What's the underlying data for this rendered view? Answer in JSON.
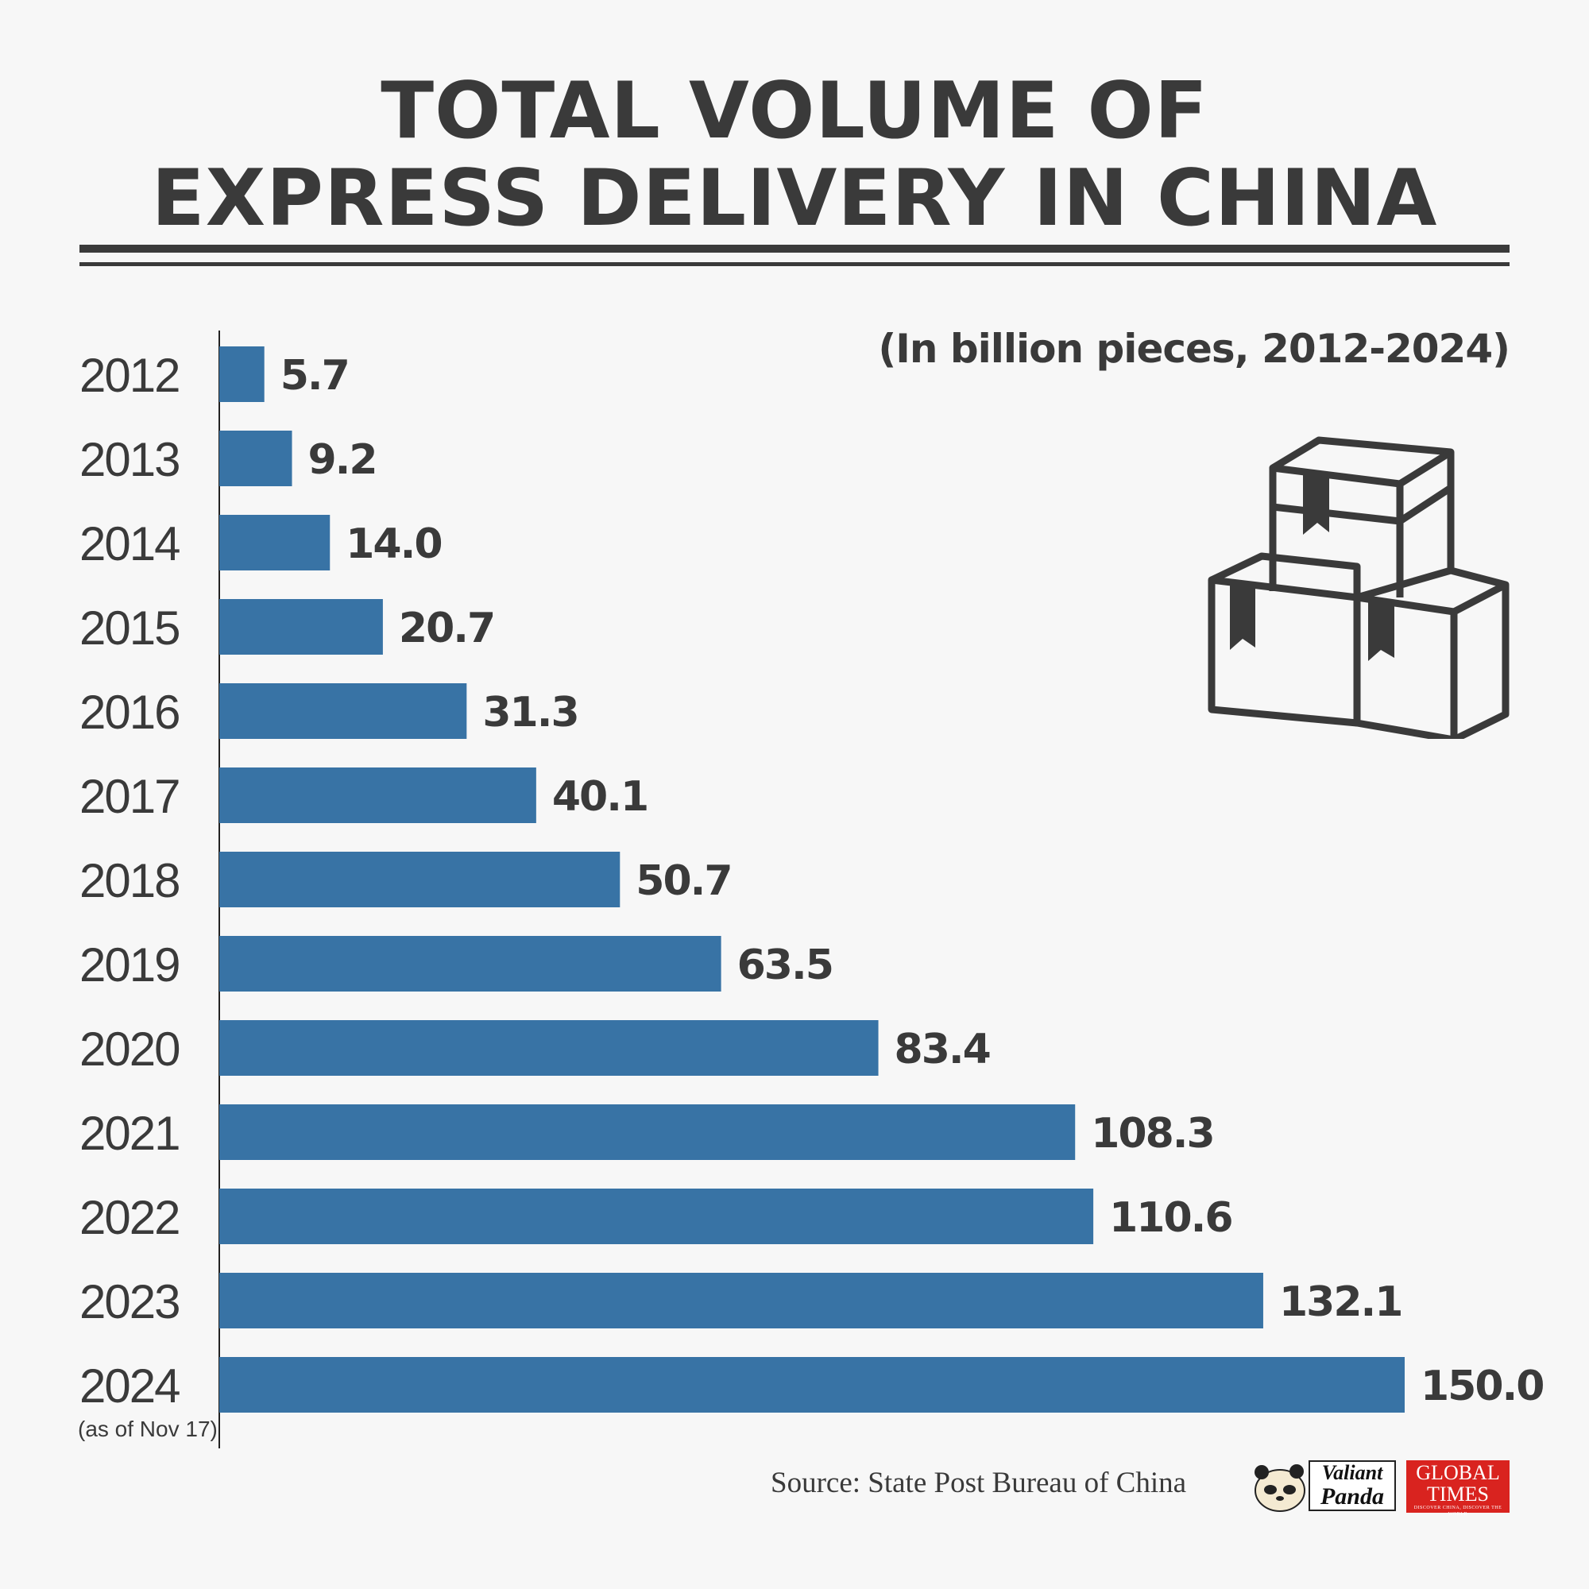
{
  "chart_data": {
    "type": "bar",
    "orientation": "horizontal",
    "title_lines": [
      "TOTAL VOLUME OF",
      "EXPRESS DELIVERY IN CHINA"
    ],
    "subtitle": "(In billion pieces, 2012-2024)",
    "categories": [
      "2012",
      "2013",
      "2014",
      "2015",
      "2016",
      "2017",
      "2018",
      "2019",
      "2020",
      "2021",
      "2022",
      "2023",
      "2024"
    ],
    "category_notes": {
      "2024": "(as of Nov 17)"
    },
    "values": [
      5.7,
      9.2,
      14.0,
      20.7,
      31.3,
      40.1,
      50.7,
      63.5,
      83.4,
      108.3,
      110.6,
      132.1,
      150.0
    ],
    "value_labels": [
      "5.7",
      "9.2",
      "14.0",
      "20.7",
      "31.3",
      "40.1",
      "50.7",
      "63.5",
      "83.4",
      "108.3",
      "110.6",
      "132.1",
      "150.0"
    ],
    "xlim": [
      0,
      150
    ],
    "bar_color": "#3873a5",
    "text_color": "#3a3a3a",
    "grid": false
  },
  "source": "Source: State Post Bureau of China",
  "logos": {
    "panda_line1": "Valiant",
    "panda_line2": "Panda",
    "gt_line1": "GLOBAL",
    "gt_line2": "TIMES",
    "gt_tagline": "DISCOVER CHINA, DISCOVER THE WORLD"
  },
  "icons": {
    "boxes": "stacked-boxes-icon",
    "panda": "panda-face-icon"
  }
}
